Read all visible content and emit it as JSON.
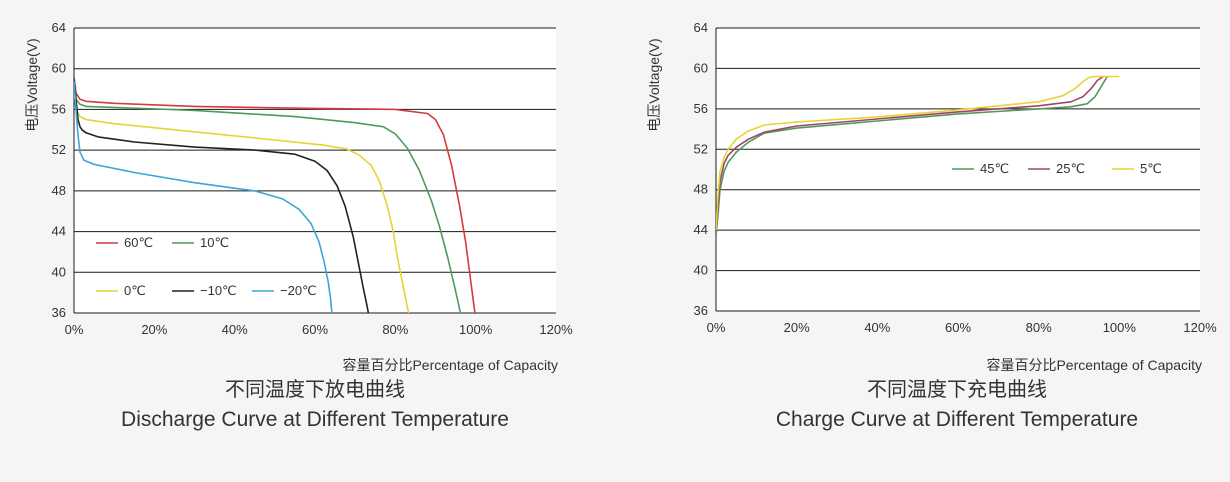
{
  "chart_data": [
    {
      "type": "line",
      "title_cn": "不同温度下放电曲线",
      "title_en": "Discharge Curve at Different Temperature",
      "xlabel": "容量百分比Percentage of Capacity",
      "ylabel": "电压Voltage(V)",
      "xlim": [
        0,
        120
      ],
      "ylim": [
        36,
        64
      ],
      "xticks": [
        "0%",
        "20%",
        "40%",
        "60%",
        "80%",
        "100%",
        "120%"
      ],
      "xtick_values": [
        0,
        20,
        40,
        60,
        80,
        100,
        120
      ],
      "yticks": [
        "64",
        "60",
        "56",
        "52",
        "48",
        "44",
        "40",
        "36"
      ],
      "ytick_values": [
        64,
        60,
        56,
        52,
        48,
        44,
        40,
        36
      ],
      "grid": "horizontal",
      "series": [
        {
          "name": "60℃",
          "color": "#d63a3a",
          "x": [
            0,
            0.5,
            1.5,
            3,
            10,
            30,
            60,
            80,
            88,
            90,
            92,
            94,
            96,
            97.5,
            98.5,
            99.3,
            99.8
          ],
          "y": [
            59.2,
            57.6,
            57.0,
            56.8,
            56.6,
            56.3,
            56.1,
            56.0,
            55.6,
            55.0,
            53.5,
            50.5,
            46.5,
            43.0,
            40.0,
            37.5,
            36.0
          ]
        },
        {
          "name": "10℃",
          "color": "#4e9a5e",
          "x": [
            0,
            0.5,
            1.5,
            3,
            10,
            30,
            55,
            70,
            77,
            80,
            83,
            86,
            89,
            91,
            93,
            94.5,
            95.5,
            96.2
          ],
          "y": [
            58.5,
            57.0,
            56.5,
            56.3,
            56.2,
            55.9,
            55.3,
            54.7,
            54.3,
            53.6,
            52.2,
            50.0,
            47.0,
            44.5,
            41.5,
            39.0,
            37.3,
            36.0
          ]
        },
        {
          "name": "0℃",
          "color": "#e8d334",
          "x": [
            0,
            0.5,
            1.5,
            3,
            10,
            30,
            50,
            62,
            68,
            71,
            74,
            76,
            78,
            79.5,
            80.5,
            81.5,
            82.5,
            83.3
          ],
          "y": [
            58.0,
            56.0,
            55.3,
            55.0,
            54.6,
            53.8,
            53.0,
            52.5,
            52.1,
            51.5,
            50.5,
            49.0,
            46.5,
            44.0,
            41.5,
            39.5,
            37.5,
            36.0
          ]
        },
        {
          "name": "−10℃",
          "color": "#222222",
          "x": [
            0,
            0.5,
            1,
            1.5,
            2,
            3,
            6,
            15,
            30,
            45,
            55,
            60,
            63,
            65.5,
            67.5,
            69.5,
            71,
            72,
            72.8,
            73.3
          ],
          "y": [
            59.0,
            57.0,
            55.0,
            54.3,
            54.0,
            53.7,
            53.3,
            52.8,
            52.3,
            52.0,
            51.6,
            50.9,
            50.0,
            48.5,
            46.5,
            43.5,
            40.5,
            38.5,
            37.0,
            36.0
          ]
        },
        {
          "name": "−20℃",
          "color": "#3ea4d8",
          "x": [
            0,
            0.5,
            1,
            1.5,
            2.5,
            5,
            15,
            30,
            45,
            52,
            56,
            59,
            61,
            62.3,
            63.3,
            63.9,
            64.2
          ],
          "y": [
            58.8,
            56.0,
            53.5,
            51.8,
            51.0,
            50.6,
            49.8,
            48.8,
            48.0,
            47.2,
            46.2,
            44.8,
            43.0,
            41.0,
            39.0,
            37.3,
            36.0
          ]
        }
      ],
      "legend": [
        {
          "label": "60℃",
          "color": "#d63a3a"
        },
        {
          "label": "10℃",
          "color": "#4e9a5e"
        },
        {
          "label": "0℃",
          "color": "#e8d334"
        },
        {
          "label": "−10℃",
          "color": "#222222"
        },
        {
          "label": "−20℃",
          "color": "#3ea4d8"
        }
      ]
    },
    {
      "type": "line",
      "title_cn": "不同温度下充电曲线",
      "title_en": "Charge Curve at Different Temperature",
      "xlabel": "容量百分比Percentage of Capacity",
      "ylabel": "电压Voltage(V)",
      "xlim": [
        0,
        120
      ],
      "ylim": [
        36,
        64
      ],
      "xticks": [
        "0%",
        "20%",
        "40%",
        "60%",
        "80%",
        "100%",
        "120%"
      ],
      "xtick_values": [
        0,
        20,
        40,
        60,
        80,
        100,
        120
      ],
      "yticks": [
        "64",
        "60",
        "56",
        "52",
        "48",
        "44",
        "40",
        "36"
      ],
      "ytick_values": [
        64,
        60,
        56,
        52,
        48,
        44,
        40,
        36
      ],
      "grid": "horizontal",
      "series": [
        {
          "name": "45℃",
          "color": "#4e9a5e",
          "x": [
            0,
            0.5,
            1,
            2,
            3,
            5,
            8,
            12,
            20,
            40,
            60,
            80,
            88,
            92,
            94,
            95.5,
            97
          ],
          "y": [
            43.5,
            45.5,
            48.0,
            49.8,
            50.7,
            51.7,
            52.7,
            53.6,
            54.1,
            54.8,
            55.5,
            56.0,
            56.2,
            56.5,
            57.2,
            58.2,
            59.2
          ]
        },
        {
          "name": "25℃",
          "color": "#a0456a",
          "x": [
            0,
            0.5,
            1,
            2,
            3,
            5,
            8,
            12,
            20,
            40,
            60,
            80,
            88,
            91,
            93,
            94.5,
            96
          ],
          "y": [
            43.8,
            46.5,
            48.8,
            50.6,
            51.4,
            52.2,
            53.0,
            53.7,
            54.3,
            55.0,
            55.7,
            56.3,
            56.7,
            57.2,
            58.0,
            58.8,
            59.2
          ]
        },
        {
          "name": "5℃",
          "color": "#e8d334",
          "x": [
            0,
            0.5,
            1,
            2,
            3,
            5,
            8,
            12,
            20,
            40,
            60,
            80,
            86,
            89,
            91,
            92.5,
            94,
            100
          ],
          "y": [
            44.0,
            47.5,
            49.8,
            51.2,
            52.0,
            53.0,
            53.8,
            54.4,
            54.7,
            55.2,
            55.9,
            56.7,
            57.3,
            58.0,
            58.7,
            59.1,
            59.2,
            59.2
          ]
        }
      ],
      "legend": [
        {
          "label": "45℃",
          "color": "#4e9a5e"
        },
        {
          "label": "25℃",
          "color": "#a0456a"
        },
        {
          "label": "5℃",
          "color": "#e8d334"
        }
      ]
    }
  ]
}
